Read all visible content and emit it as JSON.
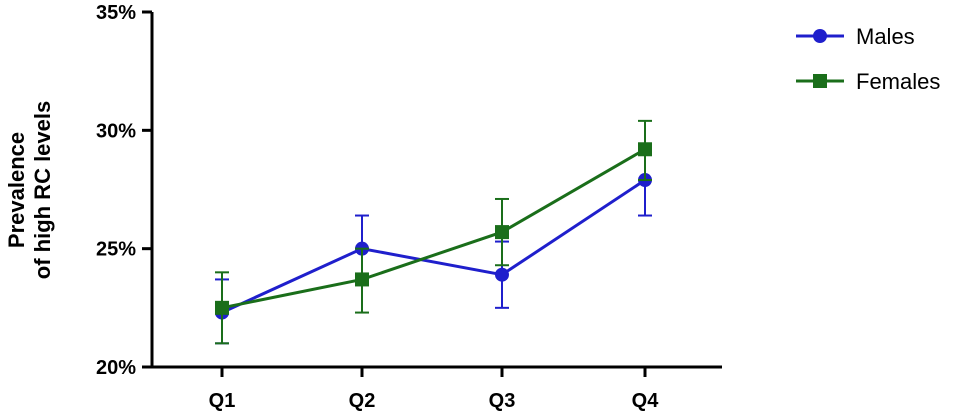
{
  "chart_data": {
    "type": "line",
    "categories": [
      "Q1",
      "Q2",
      "Q3",
      "Q4"
    ],
    "ylabel_lines": [
      "Prevalence",
      "of high RC levels"
    ],
    "y_ticks": [
      "20%",
      "25%",
      "30%",
      "35%"
    ],
    "ylim": [
      20,
      35
    ],
    "legend_position": "top-right",
    "series": [
      {
        "name": "Males",
        "color": "#1f1fcc",
        "marker": "circle",
        "values": [
          22.3,
          25.0,
          23.9,
          27.9
        ],
        "err_low": [
          21.0,
          23.6,
          22.5,
          26.4
        ],
        "err_high": [
          23.7,
          26.4,
          25.3,
          29.4
        ]
      },
      {
        "name": "Females",
        "color": "#1a6e1a",
        "marker": "square",
        "values": [
          22.5,
          23.7,
          25.7,
          29.2
        ],
        "err_low": [
          21.0,
          22.3,
          24.3,
          27.9
        ],
        "err_high": [
          24.0,
          25.0,
          27.1,
          30.4
        ]
      }
    ]
  }
}
